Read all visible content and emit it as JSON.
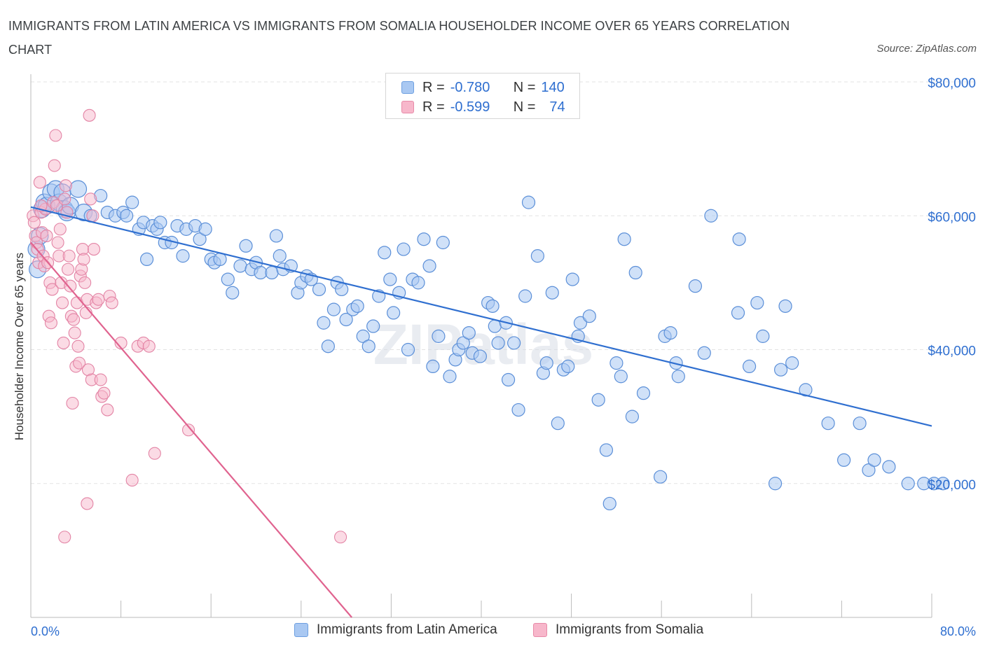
{
  "title": "IMMIGRANTS FROM LATIN AMERICA VS IMMIGRANTS FROM SOMALIA HOUSEHOLDER INCOME OVER 65 YEARS CORRELATION CHART",
  "source": "Source: ZipAtlas.com",
  "watermark": "ZIPatlas",
  "legend": {
    "rows": [
      {
        "r_label": "R =",
        "r_value": "-0.780",
        "n_label": "N =",
        "n_value": "140",
        "color": "#a9c8f2",
        "border": "#6d9fe0"
      },
      {
        "r_label": "R =",
        "r_value": "-0.599",
        "n_label": "N =",
        "n_value": "74",
        "color": "#f7b7cb",
        "border": "#e88aa8"
      }
    ]
  },
  "colors": {
    "blue_fill": "#a9c8f2",
    "blue_stroke": "#5b8fd8",
    "blue_line": "#2f6fd0",
    "pink_fill": "#f7b7cb",
    "pink_stroke": "#e384a5",
    "pink_line": "#e0638f",
    "axis_text": "#2f6fd0",
    "grid": "#e3e3e3"
  },
  "chart_data": {
    "type": "scatter",
    "title": "IMMIGRANTS FROM LATIN AMERICA VS IMMIGRANTS FROM SOMALIA HOUSEHOLDER INCOME OVER 65 YEARS CORRELATION CHART",
    "xlabel": "",
    "ylabel": "Householder Income Over 65 years",
    "xlim": [
      0,
      80
    ],
    "ylim": [
      0,
      80000
    ],
    "x_tick_labels": [
      "0.0%",
      "80.0%"
    ],
    "y_ticks": [
      20000,
      40000,
      60000,
      80000
    ],
    "y_tick_labels": [
      "$20,000",
      "$40,000",
      "$60,000",
      "$80,000"
    ],
    "grid": true,
    "legend_position": "bottom",
    "series": [
      {
        "name": "Immigrants from Latin America",
        "trend": {
          "x": [
            0,
            80
          ],
          "y": [
            61300,
            28600
          ]
        },
        "points": [
          [
            0.5,
            55000
          ],
          [
            0.6,
            52000
          ],
          [
            0.8,
            57000
          ],
          [
            1.0,
            61000
          ],
          [
            1.2,
            62000
          ],
          [
            1.4,
            61500
          ],
          [
            1.8,
            63500
          ],
          [
            2.2,
            64000
          ],
          [
            2.5,
            62000
          ],
          [
            2.8,
            63500
          ],
          [
            3.0,
            61000
          ],
          [
            3.2,
            60500
          ],
          [
            3.5,
            61500
          ],
          [
            4.2,
            64000
          ],
          [
            4.7,
            60500
          ],
          [
            5.3,
            60000
          ],
          [
            6.2,
            63000
          ],
          [
            6.8,
            60500
          ],
          [
            7.5,
            60000
          ],
          [
            8.2,
            60500
          ],
          [
            8.5,
            60000
          ],
          [
            9.0,
            62000
          ],
          [
            9.6,
            58000
          ],
          [
            10.0,
            59000
          ],
          [
            10.3,
            53500
          ],
          [
            10.8,
            58500
          ],
          [
            11.2,
            58000
          ],
          [
            11.5,
            59000
          ],
          [
            11.9,
            56000
          ],
          [
            12.5,
            56000
          ],
          [
            13.0,
            58500
          ],
          [
            13.5,
            54000
          ],
          [
            13.8,
            58000
          ],
          [
            14.6,
            58500
          ],
          [
            15.0,
            56500
          ],
          [
            15.5,
            58000
          ],
          [
            16.0,
            53500
          ],
          [
            16.3,
            53000
          ],
          [
            16.8,
            53500
          ],
          [
            17.5,
            50500
          ],
          [
            17.9,
            48500
          ],
          [
            18.6,
            52500
          ],
          [
            19.1,
            55500
          ],
          [
            19.6,
            52000
          ],
          [
            20.0,
            53000
          ],
          [
            20.4,
            51500
          ],
          [
            21.4,
            51500
          ],
          [
            21.8,
            57000
          ],
          [
            22.1,
            54000
          ],
          [
            22.4,
            52000
          ],
          [
            23.1,
            52500
          ],
          [
            23.7,
            48500
          ],
          [
            24.0,
            50000
          ],
          [
            24.5,
            51000
          ],
          [
            24.9,
            50500
          ],
          [
            25.6,
            49000
          ],
          [
            26.0,
            44000
          ],
          [
            26.4,
            40500
          ],
          [
            26.9,
            46000
          ],
          [
            27.2,
            50000
          ],
          [
            27.6,
            49000
          ],
          [
            28.0,
            44500
          ],
          [
            28.6,
            46000
          ],
          [
            29.0,
            46500
          ],
          [
            29.5,
            42000
          ],
          [
            30.0,
            40500
          ],
          [
            30.4,
            43500
          ],
          [
            30.9,
            48000
          ],
          [
            31.4,
            54500
          ],
          [
            31.9,
            50500
          ],
          [
            32.2,
            45500
          ],
          [
            32.7,
            48500
          ],
          [
            33.1,
            55000
          ],
          [
            33.5,
            40000
          ],
          [
            33.9,
            50500
          ],
          [
            34.4,
            50000
          ],
          [
            34.9,
            56500
          ],
          [
            35.4,
            52500
          ],
          [
            35.7,
            37500
          ],
          [
            36.2,
            42000
          ],
          [
            36.6,
            56000
          ],
          [
            37.2,
            36000
          ],
          [
            37.7,
            38500
          ],
          [
            38.0,
            40000
          ],
          [
            38.4,
            41000
          ],
          [
            38.9,
            42500
          ],
          [
            39.2,
            39500
          ],
          [
            39.9,
            39000
          ],
          [
            40.6,
            47000
          ],
          [
            41.0,
            46500
          ],
          [
            41.2,
            43500
          ],
          [
            41.5,
            41000
          ],
          [
            42.2,
            44000
          ],
          [
            42.4,
            35500
          ],
          [
            42.9,
            41000
          ],
          [
            43.3,
            31000
          ],
          [
            43.9,
            48000
          ],
          [
            44.2,
            62000
          ],
          [
            45.0,
            54000
          ],
          [
            45.5,
            36500
          ],
          [
            45.8,
            38000
          ],
          [
            46.3,
            48500
          ],
          [
            46.8,
            29000
          ],
          [
            47.3,
            37000
          ],
          [
            47.7,
            37500
          ],
          [
            48.1,
            50500
          ],
          [
            48.6,
            42000
          ],
          [
            48.8,
            44000
          ],
          [
            49.6,
            45000
          ],
          [
            50.4,
            32500
          ],
          [
            51.1,
            25000
          ],
          [
            51.4,
            17000
          ],
          [
            52.0,
            38000
          ],
          [
            52.4,
            36000
          ],
          [
            52.7,
            56500
          ],
          [
            53.4,
            30000
          ],
          [
            53.7,
            51500
          ],
          [
            54.4,
            33500
          ],
          [
            55.9,
            21000
          ],
          [
            56.3,
            42000
          ],
          [
            56.8,
            42500
          ],
          [
            57.3,
            38000
          ],
          [
            57.5,
            36000
          ],
          [
            59.0,
            49500
          ],
          [
            59.8,
            39500
          ],
          [
            60.4,
            60000
          ],
          [
            62.8,
            45500
          ],
          [
            62.9,
            56500
          ],
          [
            63.8,
            37500
          ],
          [
            64.5,
            47000
          ],
          [
            65.0,
            42000
          ],
          [
            66.1,
            20000
          ],
          [
            66.6,
            37000
          ],
          [
            67.0,
            46500
          ],
          [
            67.6,
            38000
          ],
          [
            68.8,
            34000
          ],
          [
            70.8,
            29000
          ],
          [
            72.2,
            23500
          ],
          [
            73.6,
            29000
          ],
          [
            74.4,
            22000
          ],
          [
            74.9,
            23500
          ],
          [
            76.2,
            22500
          ],
          [
            77.9,
            20000
          ],
          [
            79.3,
            20000
          ],
          [
            80.2,
            20000
          ],
          [
            81.0,
            20000
          ]
        ]
      },
      {
        "name": "Immigrants from Somalia",
        "trend": {
          "x": [
            0,
            28.5
          ],
          "y": [
            56000,
            0
          ]
        },
        "points": [
          [
            0.2,
            60000
          ],
          [
            0.3,
            59000
          ],
          [
            0.4,
            57000
          ],
          [
            0.5,
            56000
          ],
          [
            0.6,
            55000
          ],
          [
            0.7,
            53000
          ],
          [
            0.8,
            65000
          ],
          [
            0.9,
            60500
          ],
          [
            1.0,
            57500
          ],
          [
            1.1,
            54000
          ],
          [
            1.2,
            52500
          ],
          [
            1.3,
            61000
          ],
          [
            1.4,
            57000
          ],
          [
            1.5,
            53000
          ],
          [
            1.6,
            45000
          ],
          [
            1.7,
            50000
          ],
          [
            1.8,
            44000
          ],
          [
            1.9,
            49000
          ],
          [
            2.0,
            62000
          ],
          [
            2.1,
            67500
          ],
          [
            2.2,
            72000
          ],
          [
            2.3,
            61500
          ],
          [
            2.4,
            56000
          ],
          [
            2.5,
            54000
          ],
          [
            2.6,
            58000
          ],
          [
            2.7,
            50000
          ],
          [
            2.8,
            47000
          ],
          [
            2.9,
            41000
          ],
          [
            3.0,
            62500
          ],
          [
            3.1,
            64500
          ],
          [
            3.2,
            60500
          ],
          [
            3.3,
            52000
          ],
          [
            3.4,
            54000
          ],
          [
            3.5,
            49500
          ],
          [
            3.6,
            45000
          ],
          [
            3.7,
            32000
          ],
          [
            3.8,
            44500
          ],
          [
            3.9,
            42500
          ],
          [
            4.0,
            37500
          ],
          [
            4.1,
            47000
          ],
          [
            4.2,
            40500
          ],
          [
            4.3,
            38000
          ],
          [
            4.4,
            51000
          ],
          [
            4.5,
            52000
          ],
          [
            4.6,
            55000
          ],
          [
            4.7,
            53500
          ],
          [
            4.8,
            50000
          ],
          [
            4.9,
            45500
          ],
          [
            5.0,
            47500
          ],
          [
            5.1,
            37000
          ],
          [
            5.2,
            75000
          ],
          [
            5.3,
            62500
          ],
          [
            5.4,
            35500
          ],
          [
            5.5,
            60000
          ],
          [
            5.6,
            55000
          ],
          [
            5.8,
            47000
          ],
          [
            6.0,
            47500
          ],
          [
            6.2,
            35500
          ],
          [
            6.3,
            33000
          ],
          [
            6.5,
            33500
          ],
          [
            6.8,
            31000
          ],
          [
            7.0,
            48000
          ],
          [
            7.2,
            47000
          ],
          [
            8.0,
            41000
          ],
          [
            9.0,
            20500
          ],
          [
            9.5,
            40500
          ],
          [
            10.0,
            41000
          ],
          [
            10.5,
            40500
          ],
          [
            11.0,
            24500
          ],
          [
            14.0,
            28000
          ],
          [
            3.0,
            12000
          ],
          [
            5.0,
            17000
          ],
          [
            27.5,
            12000
          ],
          [
            0.9,
            61500
          ]
        ]
      }
    ]
  }
}
